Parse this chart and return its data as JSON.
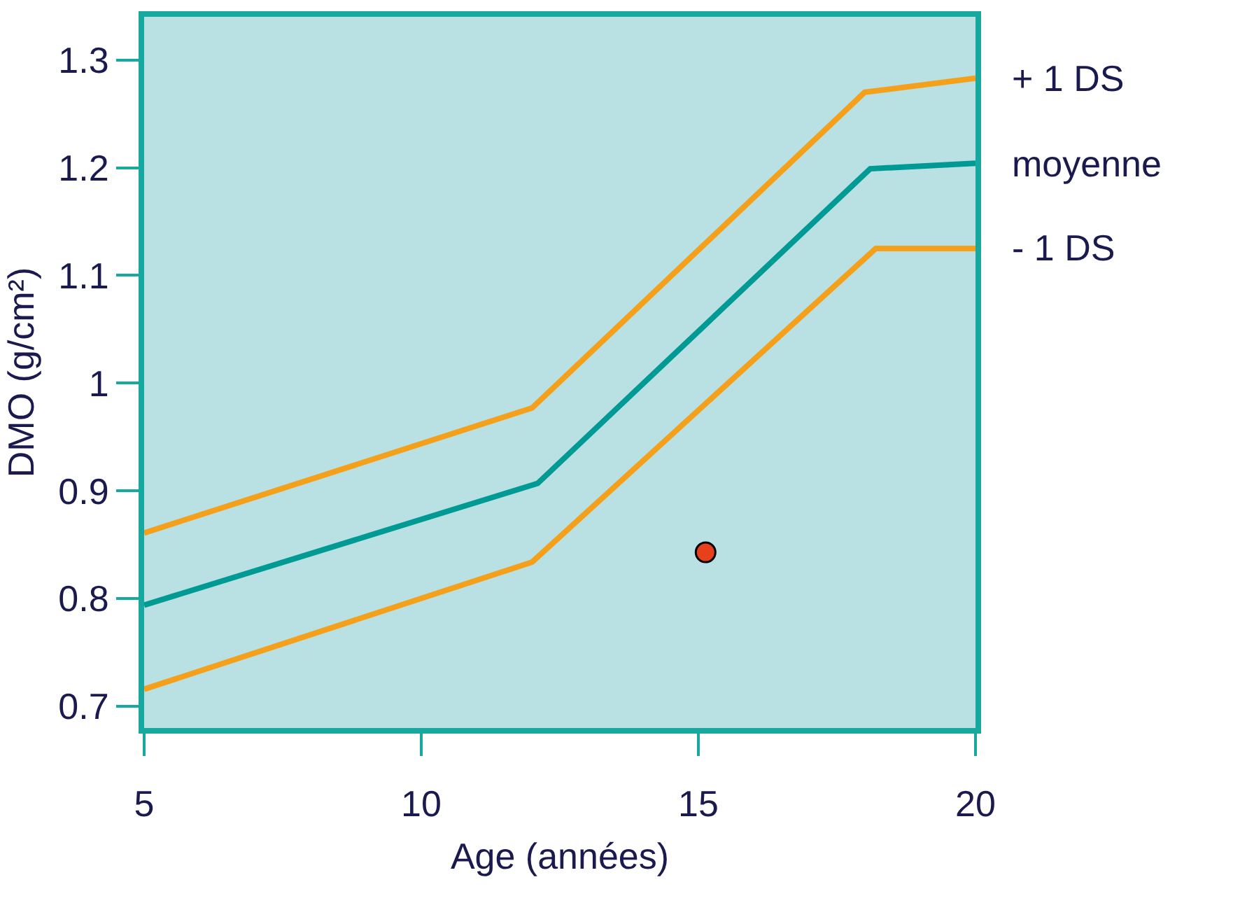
{
  "chart_data": {
    "type": "line",
    "xlabel": "Age (années)",
    "ylabel": "DMO (g/cm²)",
    "xlim": [
      5,
      20
    ],
    "xticks": [
      5,
      10,
      15,
      20
    ],
    "ylim": [
      0.68,
      1.34
    ],
    "yticks": [
      0.7,
      0.8,
      0.9,
      1,
      1.1,
      1.2,
      1.3
    ],
    "grid": false,
    "legend": false,
    "series": [
      {
        "name": "+ 1 DS",
        "color": "#f5a01a",
        "x": [
          5,
          12,
          18,
          20
        ],
        "values": [
          0.861,
          0.977,
          1.27,
          1.283
        ],
        "marker": "none"
      },
      {
        "name": "moyenne",
        "color": "#009a94",
        "x": [
          5,
          12.1,
          18.1,
          20
        ],
        "values": [
          0.794,
          0.907,
          1.199,
          1.204
        ],
        "marker": "none"
      },
      {
        "name": "- 1 DS",
        "color": "#f5a01a",
        "x": [
          5,
          12,
          18.2,
          20
        ],
        "values": [
          0.716,
          0.834,
          1.125,
          1.125
        ],
        "marker": "none"
      },
      {
        "type": "scatter",
        "color": "#e8401c",
        "x": [
          15.13
        ],
        "values": [
          0.843
        ],
        "marker": "circle"
      }
    ]
  }
}
